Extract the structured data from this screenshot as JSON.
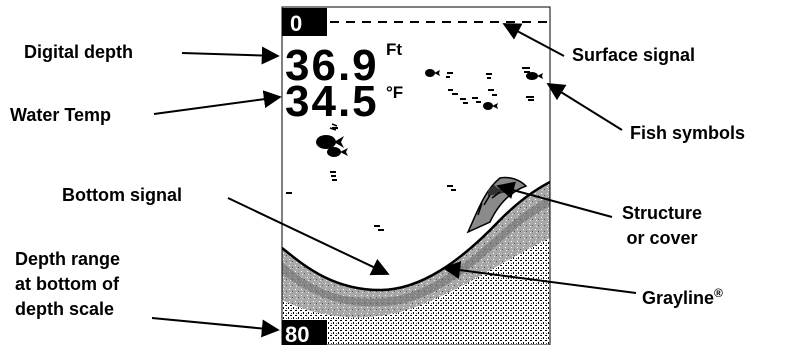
{
  "callouts": {
    "digital_depth": "Digital depth",
    "water_temp": "Water Temp",
    "bottom_signal": "Bottom signal",
    "depth_range": [
      "Depth range",
      "at bottom of",
      "depth scale"
    ],
    "surface_signal": "Surface signal",
    "fish_symbols": "Fish symbols",
    "structure": [
      "Structure",
      "or cover"
    ],
    "grayline": "Grayline",
    "grayline_mark": "®"
  },
  "screen": {
    "depth_value": "36.9",
    "depth_unit": "Ft",
    "temp_value": "34.5",
    "temp_unit": "°F",
    "scale_top": "0",
    "scale_bottom": "80"
  },
  "colors": {
    "background": "#ffffff",
    "ink": "#000000",
    "grayline": "#a8a8a8",
    "grayline_dark": "#6a6a6a"
  }
}
